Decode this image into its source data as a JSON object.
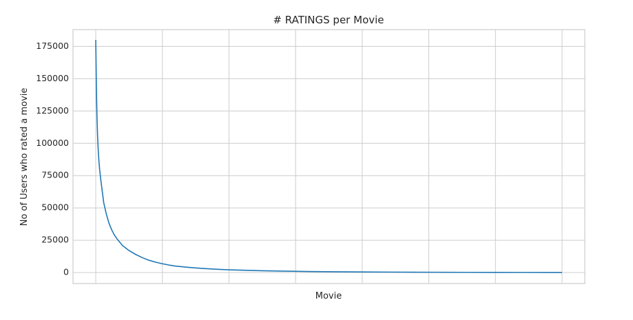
{
  "chart_data": {
    "type": "line",
    "title": "# RATINGS per Movie",
    "xlabel": "Movie",
    "ylabel": "No of Users who rated a movie",
    "xlim": [
      0,
      1750
    ],
    "ylim": [
      -8500,
      188000
    ],
    "y_ticks": [
      0,
      25000,
      50000,
      75000,
      100000,
      125000,
      150000,
      175000
    ],
    "y_tick_labels": [
      "0",
      "25000",
      "50000",
      "75000",
      "100000",
      "125000",
      "150000",
      "175000"
    ],
    "x_tick_count": 8,
    "x_tick_labels": [],
    "grid": true,
    "legend": "none",
    "colors": {
      "series": "#1f77b4",
      "grid": "#cccccc",
      "frame": "#cccccc"
    },
    "series": [
      {
        "x": [
          0,
          1,
          2,
          3,
          4,
          5,
          7,
          9,
          12,
          15,
          20,
          25,
          30,
          40,
          50,
          60,
          70,
          80,
          90,
          100,
          125,
          150,
          175,
          200,
          225,
          250,
          275,
          300,
          350,
          400,
          450,
          500,
          600,
          700,
          800,
          900,
          1000,
          1100,
          1200,
          1300,
          1400,
          1500,
          1600,
          1700,
          1750
        ],
        "y": [
          180000,
          165000,
          150000,
          138000,
          127000,
          118000,
          105000,
          96000,
          86000,
          79000,
          70000,
          62000,
          54000,
          45000,
          38000,
          33000,
          29000,
          26000,
          23500,
          21000,
          17000,
          14000,
          11500,
          9500,
          8000,
          6800,
          5800,
          5000,
          4000,
          3200,
          2600,
          2100,
          1500,
          1100,
          800,
          600,
          450,
          350,
          270,
          210,
          160,
          120,
          90,
          60,
          40
        ]
      }
    ]
  }
}
